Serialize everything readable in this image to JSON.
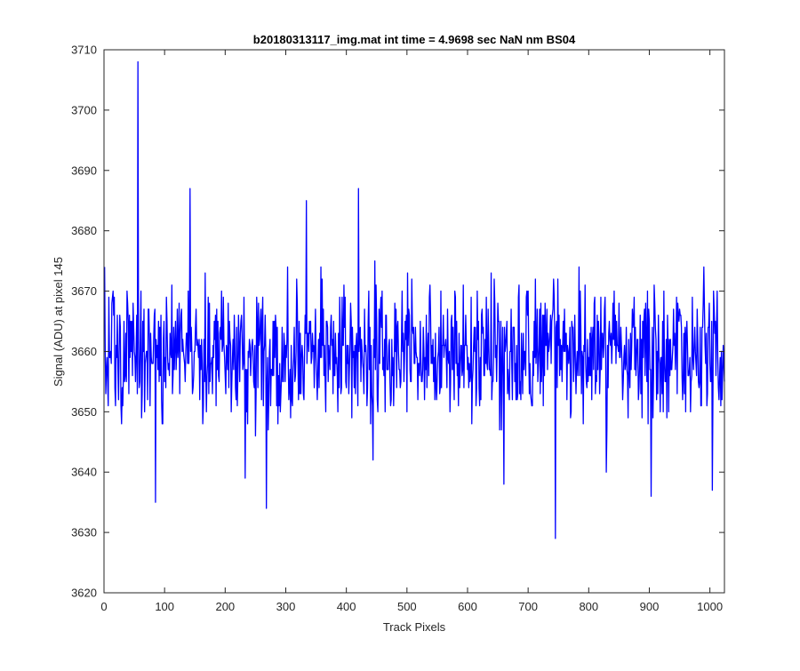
{
  "chart_data": {
    "type": "line",
    "title": "b20180313117_img.mat int time = 4.9698 sec  NaN nm BS04",
    "xlabel": "Track Pixels",
    "ylabel": "Signal (ADU) at pixel 145",
    "xlim": [
      0,
      1024
    ],
    "ylim": [
      3620,
      3710
    ],
    "xticks": [
      0,
      100,
      200,
      300,
      400,
      500,
      600,
      700,
      800,
      900,
      1000
    ],
    "yticks": [
      3620,
      3630,
      3640,
      3650,
      3660,
      3670,
      3680,
      3690,
      3700,
      3710
    ],
    "grid": false,
    "line_color": "#0000ff",
    "series": [
      {
        "n_points": 1024,
        "baseline": 3660,
        "noise_amplitude": 7,
        "highlights": [
          {
            "x": 1,
            "y": 3674
          },
          {
            "x": 56,
            "y": 3708
          },
          {
            "x": 85,
            "y": 3635
          },
          {
            "x": 142,
            "y": 3687
          },
          {
            "x": 233,
            "y": 3639
          },
          {
            "x": 268,
            "y": 3634
          },
          {
            "x": 334,
            "y": 3685
          },
          {
            "x": 420,
            "y": 3687
          },
          {
            "x": 444,
            "y": 3642
          },
          {
            "x": 660,
            "y": 3638
          },
          {
            "x": 745,
            "y": 3629
          },
          {
            "x": 829,
            "y": 3640
          },
          {
            "x": 903,
            "y": 3636
          },
          {
            "x": 1004,
            "y": 3637
          },
          {
            "x": 1012,
            "y": 3670
          }
        ]
      }
    ]
  }
}
